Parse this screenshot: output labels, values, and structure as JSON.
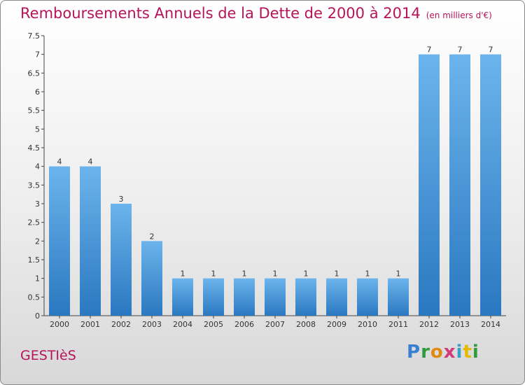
{
  "chart_data": {
    "type": "bar",
    "title": "Remboursements Annuels de la Dette de 2000 à 2014",
    "subtitle": "(en milliers d'€)",
    "categories": [
      "2000",
      "2001",
      "2002",
      "2003",
      "2004",
      "2005",
      "2006",
      "2007",
      "2008",
      "2009",
      "2010",
      "2011",
      "2012",
      "2013",
      "2014"
    ],
    "values": [
      4,
      4,
      3,
      2,
      1,
      1,
      1,
      1,
      1,
      1,
      1,
      1,
      7,
      7,
      7
    ],
    "data_labels": [
      "4",
      "4",
      "3",
      "2",
      "1",
      "1",
      "1",
      "1",
      "1",
      "1",
      "1",
      "1",
      "7",
      "7",
      "7"
    ],
    "yticks": [
      0,
      0.5,
      1,
      1.5,
      2,
      2.5,
      3,
      3.5,
      4,
      4.5,
      5,
      5.5,
      6,
      6.5,
      7,
      7.5
    ],
    "ytick_labels": [
      "0",
      "0.5",
      "1",
      "1.5",
      "2",
      "2.5",
      "3",
      "3.5",
      "4",
      "4.5",
      "5",
      "5.5",
      "6",
      "6.5",
      "7",
      "7.5"
    ],
    "ylim": [
      0,
      7.5
    ],
    "grid": false,
    "bar_color": "#3d8fd8",
    "bar_color_light": "#6cb4ec",
    "bar_color_dark": "#2a78c0"
  },
  "footer": {
    "commune": "GESTIèS",
    "logo_letters": [
      "P",
      "r",
      "o",
      "x",
      "i",
      "t",
      "i"
    ]
  }
}
